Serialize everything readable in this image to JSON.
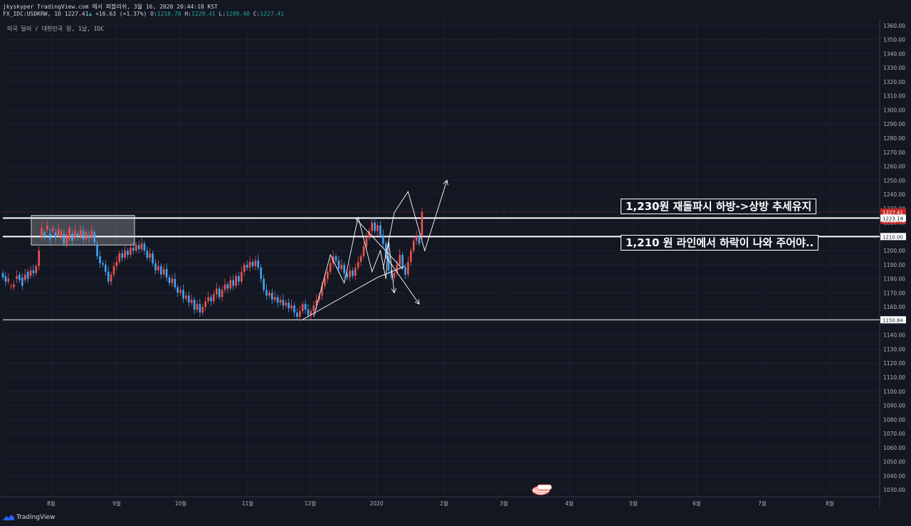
{
  "header": {
    "line1": "jkyskyper TradingView.com 에서 퍼블리쉬, 3월 16, 2020 20:44:18 KST",
    "symbol": "FX_IDC:USDKRW, 1D",
    "last": "1227.41",
    "change": "+16.63 (+1.37%)",
    "ohlc": [
      {
        "k": "O:",
        "v": "1210.78"
      },
      {
        "k": "H:",
        "v": "1229.41"
      },
      {
        "k": "L:",
        "v": "1209.40"
      },
      {
        "k": "C:",
        "v": "1227.41"
      }
    ],
    "arrow": "▲"
  },
  "symbol_label": "미국 달러 / 대한민국 원, 1날, IDC",
  "annotations": [
    "1,230원 재돌파시 하방->상방 추세유지",
    "1,210 원 라인에서 하락이 나와 주어야.."
  ],
  "brand": "TradingView",
  "colors": {
    "up": "#ef5350",
    "down": "#42a5f5",
    "bg": "#131722",
    "grid": "#1e2230",
    "text": "#b2b5be",
    "price_tag": "#c62828"
  },
  "chart_data": {
    "type": "candlestick",
    "ylim": [
      1025,
      1365
    ],
    "yticks": [
      1030,
      1040,
      1050,
      1060,
      1070,
      1080,
      1090,
      1100,
      1110,
      1120,
      1130,
      1140,
      1150,
      1160,
      1170,
      1180,
      1190,
      1200,
      1210,
      1220,
      1230,
      1240,
      1250,
      1260,
      1270,
      1280,
      1290,
      1300,
      1310,
      1320,
      1330,
      1340,
      1350,
      1360
    ],
    "xticks": [
      "8월",
      "9월",
      "10월",
      "11월",
      "12월",
      "2020",
      "2월",
      "3월",
      "4월",
      "5월",
      "6월",
      "7월",
      "8월"
    ],
    "price_labels": [
      {
        "value": 1227.41,
        "text": "1227.41",
        "style": "last"
      },
      {
        "value": 1221.5,
        "text": "10:15:43",
        "style": "last"
      },
      {
        "value": 1223.14,
        "text": "1223.14",
        "style": "plain"
      },
      {
        "value": 1210.0,
        "text": "1210.00",
        "style": "plain"
      },
      {
        "value": 1150.84,
        "text": "1150.84",
        "style": "plain"
      }
    ],
    "horizontal_lines": [
      1223.14,
      1210.0,
      1150.84
    ],
    "range_box": {
      "y_top": 1225,
      "y_bottom": 1204
    },
    "path_points": [
      [
        1184,
        1181
      ],
      [
        1182,
        1178
      ],
      [
        1178,
        1180
      ],
      [
        1175,
        1175
      ],
      [
        1174,
        1176
      ],
      [
        1180,
        1182
      ],
      [
        1183,
        1179
      ],
      [
        1181,
        1175
      ],
      [
        1179,
        1183
      ],
      [
        1185,
        1180
      ],
      [
        1182,
        1186
      ],
      [
        1186,
        1184
      ],
      [
        1184,
        1189
      ],
      [
        1189,
        1200
      ],
      [
        1210,
        1216
      ],
      [
        1213,
        1210
      ],
      [
        1215,
        1218
      ],
      [
        1212,
        1208
      ],
      [
        1214,
        1216
      ],
      [
        1213,
        1209
      ],
      [
        1211,
        1215
      ],
      [
        1210,
        1214
      ],
      [
        1212,
        1205
      ],
      [
        1205,
        1210
      ],
      [
        1208,
        1216
      ],
      [
        1212,
        1207
      ],
      [
        1209,
        1214
      ],
      [
        1212,
        1210
      ],
      [
        1210,
        1215
      ],
      [
        1214,
        1208
      ],
      [
        1208,
        1213
      ],
      [
        1211,
        1209
      ],
      [
        1209,
        1214
      ],
      [
        1213,
        1206
      ],
      [
        1204,
        1196
      ],
      [
        1196,
        1191
      ],
      [
        1191,
        1190
      ],
      [
        1190,
        1185
      ],
      [
        1185,
        1178
      ],
      [
        1178,
        1183
      ],
      [
        1183,
        1189
      ],
      [
        1189,
        1192
      ],
      [
        1192,
        1198
      ],
      [
        1198,
        1195
      ],
      [
        1195,
        1200
      ],
      [
        1200,
        1197
      ],
      [
        1197,
        1202
      ],
      [
        1202,
        1200
      ],
      [
        1200,
        1204
      ],
      [
        1204,
        1201
      ],
      [
        1201,
        1205
      ],
      [
        1205,
        1200
      ],
      [
        1200,
        1195
      ],
      [
        1195,
        1198
      ],
      [
        1198,
        1191
      ],
      [
        1191,
        1186
      ],
      [
        1186,
        1189
      ],
      [
        1189,
        1183
      ],
      [
        1183,
        1187
      ],
      [
        1187,
        1181
      ],
      [
        1181,
        1177
      ],
      [
        1177,
        1180
      ],
      [
        1180,
        1174
      ],
      [
        1174,
        1170
      ],
      [
        1170,
        1172
      ],
      [
        1172,
        1166
      ],
      [
        1166,
        1168
      ],
      [
        1168,
        1163
      ],
      [
        1163,
        1165
      ],
      [
        1165,
        1158
      ],
      [
        1158,
        1162
      ],
      [
        1162,
        1156
      ],
      [
        1156,
        1160
      ],
      [
        1160,
        1164
      ],
      [
        1164,
        1167
      ],
      [
        1167,
        1164
      ],
      [
        1164,
        1169
      ],
      [
        1169,
        1173
      ],
      [
        1173,
        1167
      ],
      [
        1167,
        1172
      ],
      [
        1172,
        1176
      ],
      [
        1176,
        1173
      ],
      [
        1173,
        1179
      ],
      [
        1179,
        1175
      ],
      [
        1175,
        1182
      ],
      [
        1182,
        1178
      ],
      [
        1178,
        1185
      ],
      [
        1185,
        1190
      ],
      [
        1190,
        1188
      ],
      [
        1188,
        1192
      ],
      [
        1192,
        1189
      ],
      [
        1189,
        1193
      ],
      [
        1193,
        1188
      ],
      [
        1188,
        1180
      ],
      [
        1180,
        1172
      ],
      [
        1172,
        1168
      ],
      [
        1168,
        1170
      ],
      [
        1170,
        1165
      ],
      [
        1165,
        1167
      ],
      [
        1167,
        1163
      ],
      [
        1163,
        1165
      ],
      [
        1165,
        1161
      ],
      [
        1161,
        1163
      ],
      [
        1163,
        1159
      ],
      [
        1159,
        1161
      ],
      [
        1161,
        1156
      ],
      [
        1156,
        1153
      ],
      [
        1153,
        1157
      ],
      [
        1157,
        1162
      ],
      [
        1162,
        1158
      ],
      [
        1158,
        1154
      ],
      [
        1154,
        1157
      ],
      [
        1157,
        1161
      ],
      [
        1161,
        1165
      ],
      [
        1165,
        1168
      ],
      [
        1168,
        1175
      ],
      [
        1175,
        1180
      ],
      [
        1180,
        1185
      ],
      [
        1185,
        1191
      ],
      [
        1191,
        1196
      ],
      [
        1196,
        1193
      ],
      [
        1193,
        1187
      ],
      [
        1187,
        1190
      ],
      [
        1190,
        1184
      ],
      [
        1184,
        1181
      ],
      [
        1181,
        1186
      ],
      [
        1186,
        1182
      ],
      [
        1182,
        1188
      ],
      [
        1188,
        1192
      ],
      [
        1192,
        1196
      ],
      [
        1196,
        1203
      ],
      [
        1203,
        1209
      ],
      [
        1209,
        1214
      ],
      [
        1214,
        1220
      ],
      [
        1220,
        1214
      ],
      [
        1214,
        1218
      ],
      [
        1218,
        1211
      ],
      [
        1211,
        1205
      ],
      [
        1205,
        1196
      ],
      [
        1196,
        1186
      ],
      [
        1186,
        1181
      ],
      [
        1181,
        1184
      ],
      [
        1184,
        1190
      ],
      [
        1190,
        1197
      ],
      [
        1197,
        1188
      ],
      [
        1188,
        1183
      ],
      [
        1183,
        1192
      ],
      [
        1192,
        1200
      ],
      [
        1200,
        1207
      ],
      [
        1207,
        1210
      ],
      [
        1210,
        1205
      ],
      [
        1210.78,
        1227.41
      ]
    ],
    "drawings": {
      "zigzag_up": [
        [
          1153,
          112
        ],
        [
          1197,
          118
        ],
        [
          1177,
          123
        ],
        [
          1224,
          128
        ]
      ],
      "drop1": [
        [
          1224,
          128
        ],
        [
          1185,
          133
        ],
        [
          1200,
          136
        ],
        [
          1180,
          138
        ],
        [
          1207,
          139
        ],
        [
          1170,
          141
        ]
      ],
      "wedge_lower": [
        [
          1151,
          108
        ],
        [
          1181,
          135
        ],
        [
          1189,
          145
        ]
      ],
      "wedge_upper": [
        [
          1223,
          127
        ],
        [
          1187,
          144
        ]
      ],
      "drop2": [
        [
          1196,
          138
        ],
        [
          1162,
          150
        ]
      ],
      "rise_path": [
        [
          1187,
          137
        ],
        [
          1227,
          141
        ],
        [
          1242,
          146
        ],
        [
          1200,
          152
        ],
        [
          1250,
          160
        ]
      ]
    }
  }
}
